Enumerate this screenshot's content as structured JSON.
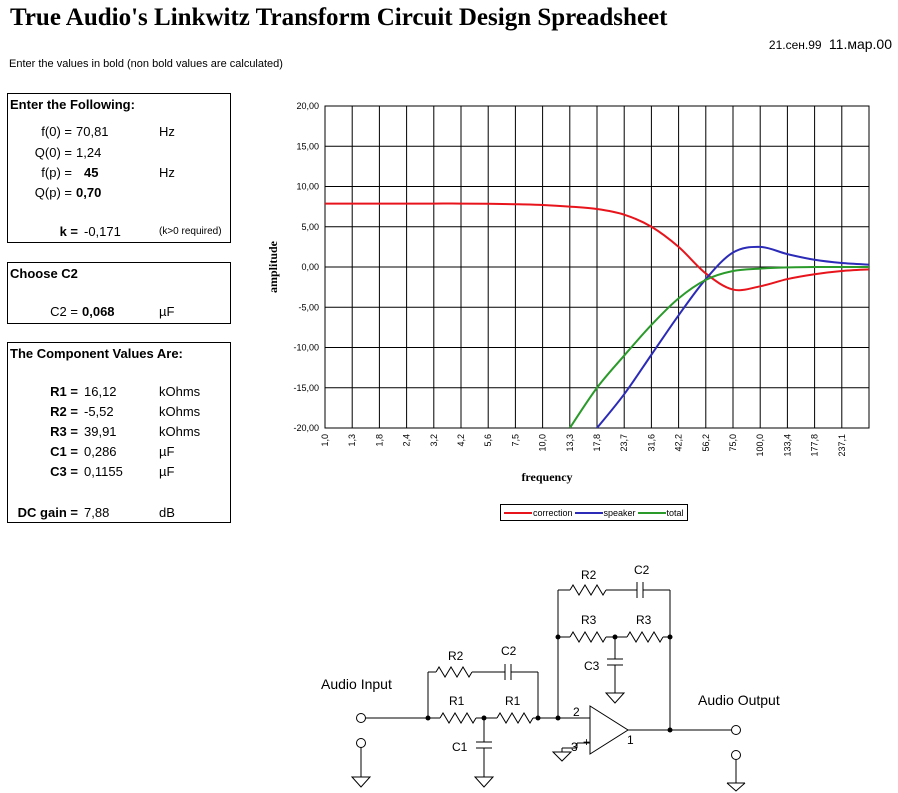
{
  "header": {
    "title": "True Audio's Linkwitz Transform Circuit Design Spreadsheet",
    "date1": "21.сен.99",
    "date2": "11.мар.00",
    "instructions": "Enter the values in bold (non bold values are calculated)"
  },
  "inputs": {
    "heading": "Enter the Following:",
    "f0": {
      "label": "f(0) =",
      "value": "70,81",
      "unit": "Hz"
    },
    "q0": {
      "label": "Q(0) =",
      "value": "1,24"
    },
    "fp": {
      "label": "f(p) =",
      "value": "45",
      "unit": "Hz"
    },
    "qp": {
      "label": "Q(p) =",
      "value": "0,70"
    },
    "k": {
      "label": "k =",
      "value": "-0,171",
      "note": "(k>0 required)"
    }
  },
  "c2box": {
    "heading": "Choose C2",
    "label": "C2 =",
    "value": "0,068",
    "unit": "µF"
  },
  "components": {
    "heading": "The Component Values Are:",
    "rows": [
      {
        "label": "R1 =",
        "value": "16,12",
        "unit": "kOhms"
      },
      {
        "label": "R2 =",
        "value": "-5,52",
        "unit": "kOhms"
      },
      {
        "label": "R3 =",
        "value": "39,91",
        "unit": "kOhms"
      },
      {
        "label": "C1 =",
        "value": "0,286",
        "unit": "µF"
      },
      {
        "label": "C3 =",
        "value": "0,1155",
        "unit": "µF"
      }
    ],
    "dcgain": {
      "label": "DC gain =",
      "value": "7,88",
      "unit": "dB"
    }
  },
  "chart_data": {
    "type": "line",
    "xlabel": "frequency",
    "ylabel": "amplitude",
    "ylim": [
      -20,
      20
    ],
    "y_ticks": [
      "20,00",
      "15,00",
      "10,00",
      "5,00",
      "0,00",
      "-5,00",
      "-10,00",
      "-15,00",
      "-20,00"
    ],
    "x_ticks": [
      "1,0",
      "1,3",
      "1,8",
      "2,4",
      "3,2",
      "4,2",
      "5,6",
      "7,5",
      "10,0",
      "13,3",
      "17,8",
      "23,7",
      "31,6",
      "42,2",
      "56,2",
      "75,0",
      "100,0",
      "133,4",
      "177,8",
      "237,1"
    ],
    "x": [
      1.0,
      1.3,
      1.8,
      2.4,
      3.2,
      4.2,
      5.6,
      7.5,
      10.0,
      13.3,
      17.8,
      23.7,
      31.6,
      42.2,
      56.2,
      75.0,
      100.0,
      133.4,
      177.8,
      237.1,
      316.2
    ],
    "grid": true,
    "legend_position": "bottom",
    "series": [
      {
        "name": "correction",
        "color": "#e8141c",
        "values": [
          7.88,
          7.88,
          7.88,
          7.88,
          7.88,
          7.88,
          7.86,
          7.8,
          7.7,
          7.5,
          7.2,
          6.5,
          5.0,
          2.5,
          -0.8,
          -2.8,
          -2.4,
          -1.5,
          -0.9,
          -0.5,
          -0.3
        ]
      },
      {
        "name": "speaker",
        "color": "#2b2bb8",
        "values": [
          null,
          null,
          null,
          null,
          null,
          null,
          null,
          null,
          null,
          null,
          -20.0,
          -15.8,
          -10.9,
          -6.0,
          -1.5,
          1.8,
          2.5,
          1.6,
          0.9,
          0.5,
          0.3
        ]
      },
      {
        "name": "total",
        "color": "#2a9a2a",
        "values": [
          null,
          null,
          null,
          null,
          null,
          null,
          null,
          null,
          null,
          -20.0,
          -15.0,
          -11.0,
          -7.2,
          -3.9,
          -1.6,
          -0.5,
          -0.2,
          -0.05,
          0.0,
          0.0,
          0.0
        ]
      }
    ]
  },
  "schematic": {
    "audio_input": "Audio Input",
    "audio_output": "Audio Output",
    "labels": {
      "r1a": "R1",
      "r1b": "R1",
      "r2": "R2",
      "c2": "C2",
      "c1": "C1",
      "r2top": "R2",
      "c2top": "C2",
      "r3a": "R3",
      "r3b": "R3",
      "c3": "C3",
      "pin2": "2",
      "pin3": "3",
      "pin1": "1",
      "minus": "-",
      "plus": "+"
    }
  }
}
